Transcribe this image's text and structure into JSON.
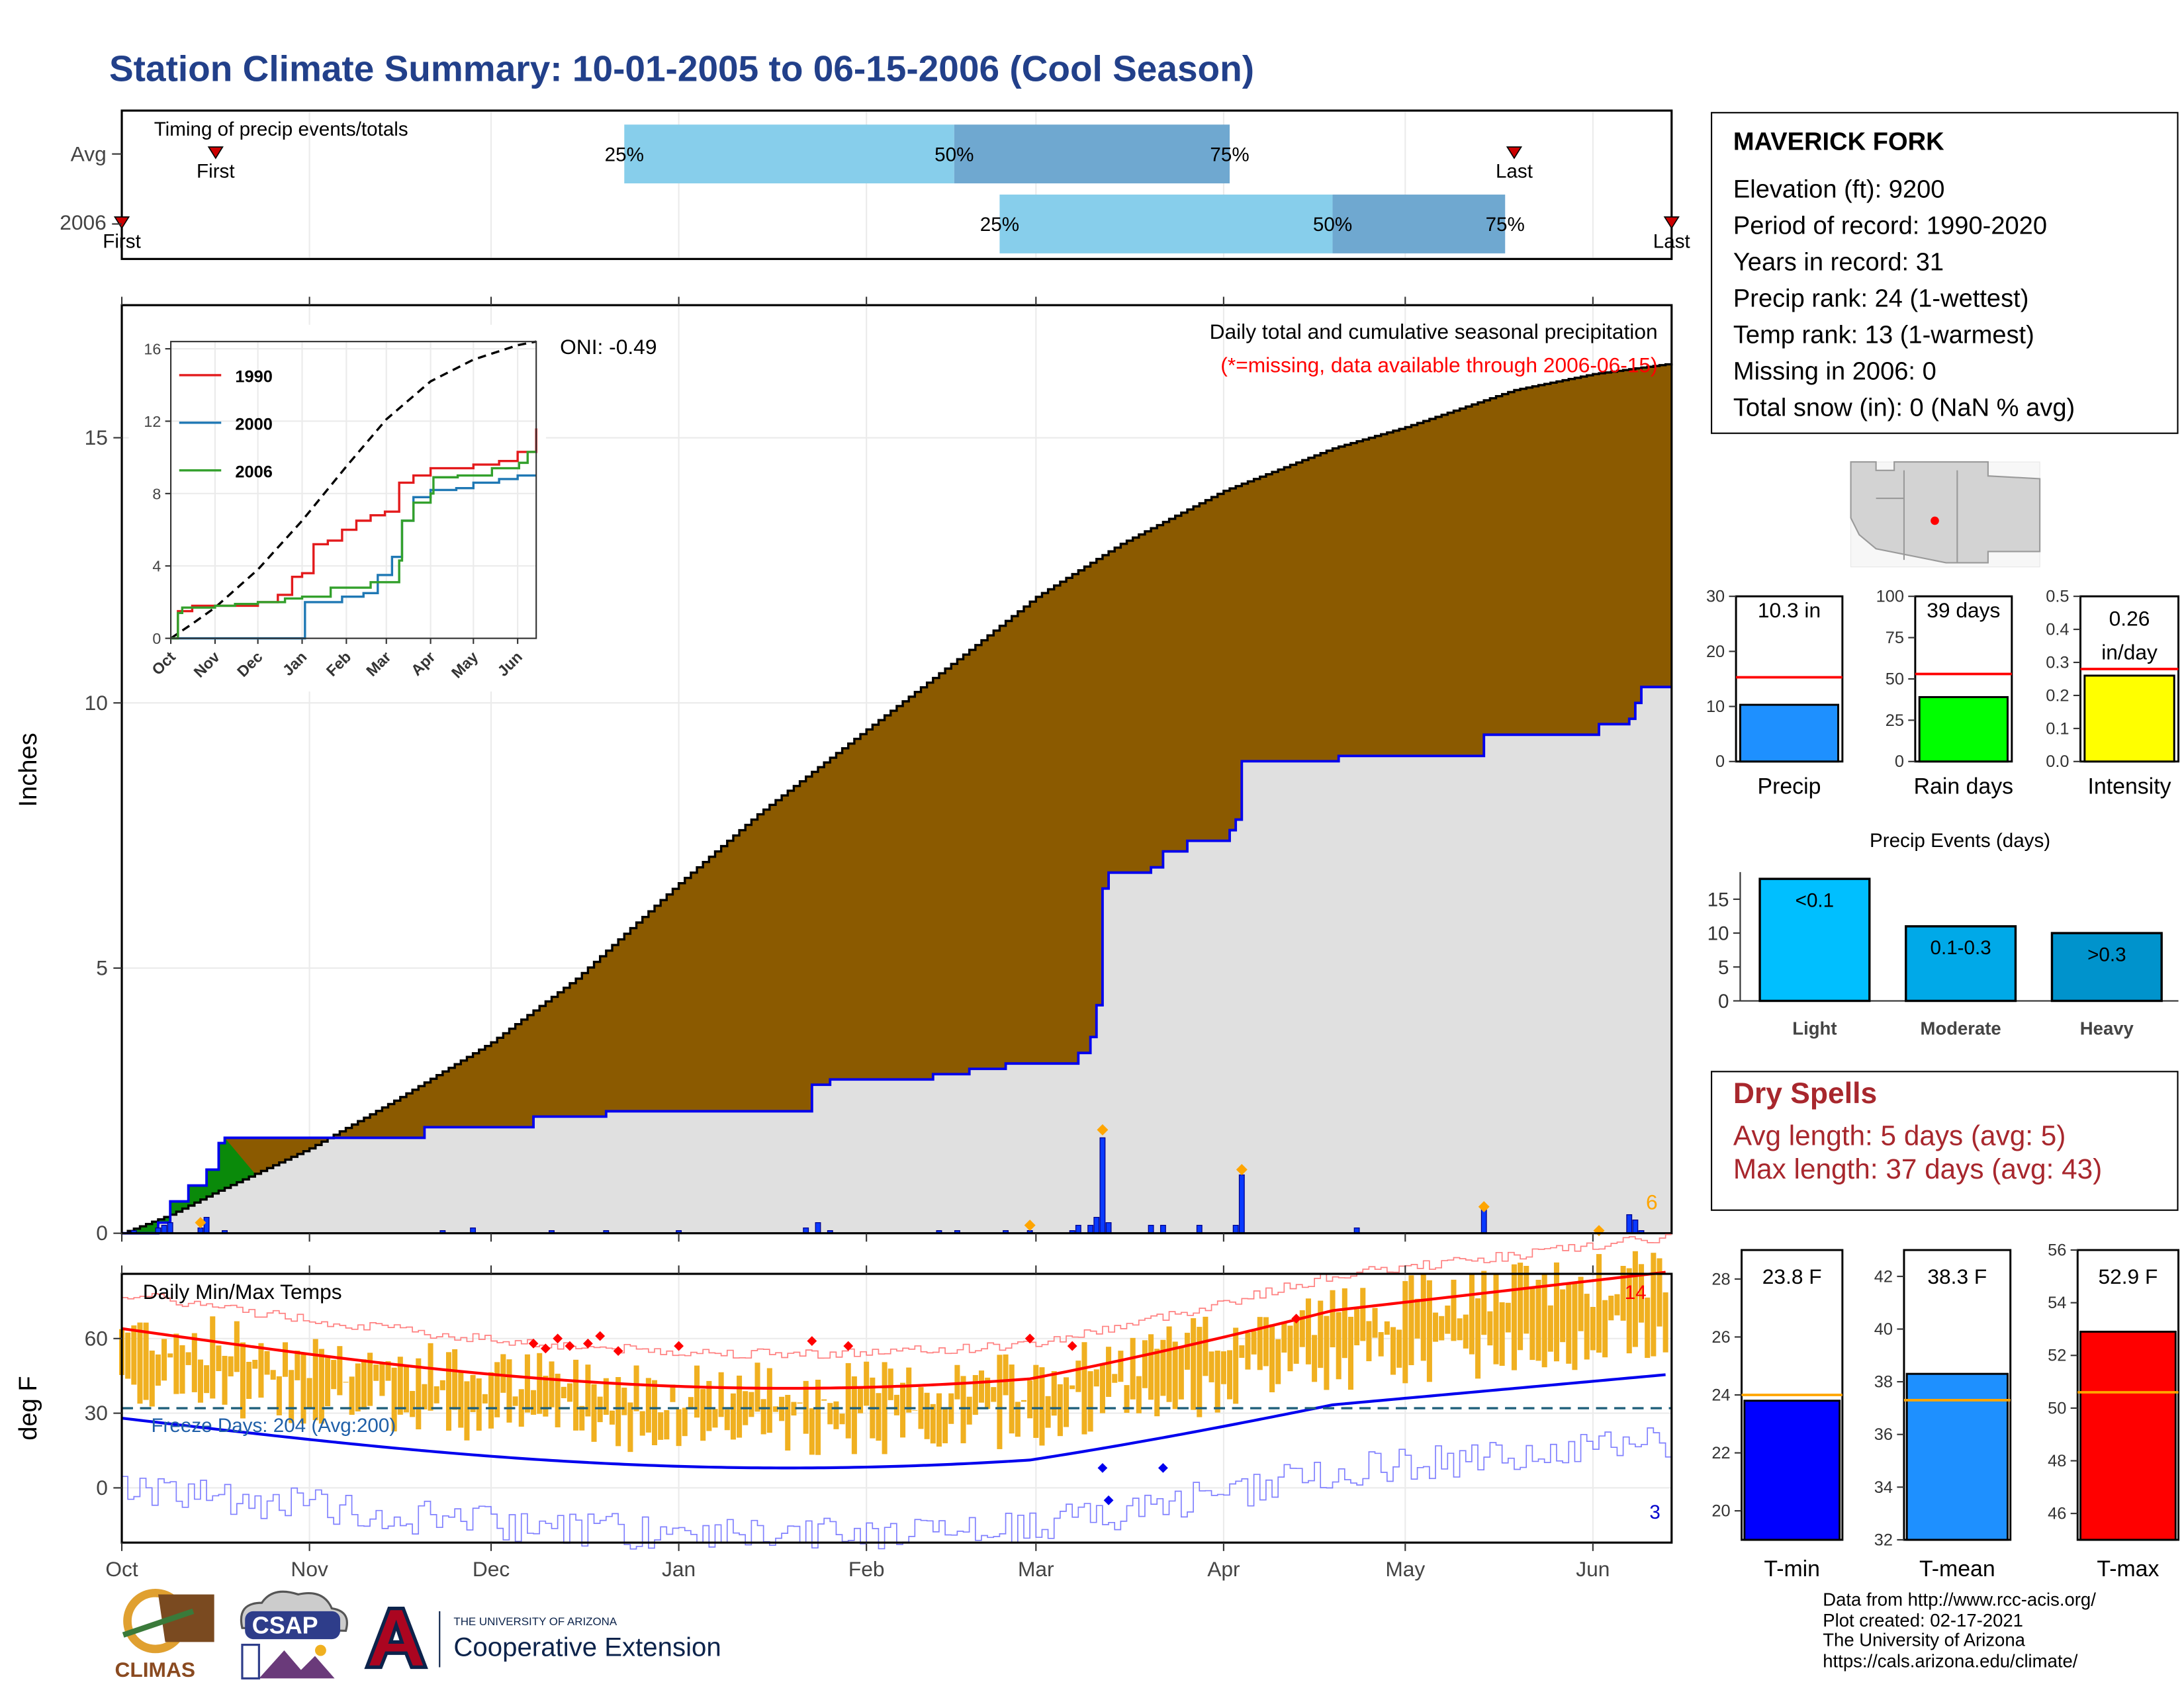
{
  "title": "Station Climate Summary: 10-01-2005 to 06-15-2006 (Cool Season)",
  "station": {
    "name": "MAVERICK FORK",
    "rows": [
      "Elevation (ft): 9200",
      "Period of record: 1990-2020",
      "Years in record: 31",
      "Precip rank: 24 (1-wettest)",
      "Temp rank: 13 (1-warmest)",
      "Missing in 2006: 0",
      "Total snow (in): 0 (NaN % avg)"
    ]
  },
  "timing": {
    "label": "Timing of precip events/totals",
    "rows": [
      {
        "name": "Avg",
        "first_label": "First",
        "last_label": "Last",
        "first": 15.5,
        "last": 230,
        "p25": 83,
        "p50": 137.5,
        "p75": 183
      },
      {
        "name": "2006",
        "first_label": "First",
        "last_label": "Last",
        "first": 0,
        "last": 256,
        "p25": 145,
        "p50": 200,
        "p75": 228.5
      }
    ],
    "pct_labels": [
      "25%",
      "50%",
      "75%"
    ]
  },
  "months": [
    "Oct",
    "Nov",
    "Dec",
    "Jan",
    "Feb",
    "Mar",
    "Apr",
    "May",
    "Jun"
  ],
  "month_days": [
    0,
    31,
    61,
    92,
    123,
    151,
    182,
    212,
    243
  ],
  "precip": {
    "ylabel": "Inches",
    "yticks": [
      0,
      5,
      10,
      15
    ],
    "ylim": [
      0,
      17.5
    ],
    "title": "Daily total and cumulative seasonal precipitation",
    "subtitle": "(*=missing, data available through 2006-06-15)",
    "oni": "ONI: -0.49",
    "extreme_count": "6",
    "avg_cumulative": [
      [
        0,
        0
      ],
      [
        8,
        0.35
      ],
      [
        15,
        0.75
      ],
      [
        31,
        1.6
      ],
      [
        45,
        2.5
      ],
      [
        61,
        3.6
      ],
      [
        75,
        4.8
      ],
      [
        92,
        6.6
      ],
      [
        105,
        7.9
      ],
      [
        123,
        9.5
      ],
      [
        140,
        11.0
      ],
      [
        151,
        12.0
      ],
      [
        165,
        13.0
      ],
      [
        182,
        14.0
      ],
      [
        200,
        14.8
      ],
      [
        212,
        15.2
      ],
      [
        230,
        15.9
      ],
      [
        243,
        16.2
      ],
      [
        256,
        16.4
      ]
    ],
    "cumulative_2006": [
      [
        0,
        0
      ],
      [
        6,
        0.2
      ],
      [
        8,
        0.6
      ],
      [
        11,
        0.9
      ],
      [
        14,
        1.2
      ],
      [
        16,
        1.7
      ],
      [
        17,
        1.8
      ],
      [
        31,
        1.8
      ],
      [
        45,
        1.8
      ],
      [
        50,
        2.0
      ],
      [
        61,
        2.0
      ],
      [
        68,
        2.2
      ],
      [
        80,
        2.3
      ],
      [
        112,
        2.3
      ],
      [
        114,
        2.8
      ],
      [
        117,
        2.9
      ],
      [
        134,
        3.0
      ],
      [
        140,
        3.1
      ],
      [
        146,
        3.2
      ],
      [
        158,
        3.4
      ],
      [
        160,
        3.7
      ],
      [
        161,
        4.3
      ],
      [
        162,
        6.5
      ],
      [
        163,
        6.8
      ],
      [
        170,
        6.9
      ],
      [
        172,
        7.2
      ],
      [
        176,
        7.4
      ],
      [
        183,
        7.6
      ],
      [
        184,
        7.8
      ],
      [
        185,
        8.9
      ],
      [
        201,
        9.0
      ],
      [
        204,
        9.0
      ],
      [
        220,
        9.0
      ],
      [
        225,
        9.4
      ],
      [
        244,
        9.6
      ],
      [
        249,
        9.7
      ],
      [
        250,
        10.0
      ],
      [
        251,
        10.3
      ],
      [
        256,
        10.3
      ]
    ],
    "daily_bars": [
      [
        2,
        0.05
      ],
      [
        6,
        0.1
      ],
      [
        7,
        0.15
      ],
      [
        8,
        0.2
      ],
      [
        13,
        0.1
      ],
      [
        14,
        0.3
      ],
      [
        17,
        0.05
      ],
      [
        53,
        0.05
      ],
      [
        58,
        0.1
      ],
      [
        71,
        0.05
      ],
      [
        80,
        0.05
      ],
      [
        92,
        0.05
      ],
      [
        113,
        0.1
      ],
      [
        115,
        0.2
      ],
      [
        117,
        0.05
      ],
      [
        135,
        0.05
      ],
      [
        138,
        0.05
      ],
      [
        146,
        0.05
      ],
      [
        150,
        0.05
      ],
      [
        157,
        0.05
      ],
      [
        158,
        0.15
      ],
      [
        160,
        0.15
      ],
      [
        161,
        0.3
      ],
      [
        162,
        1.8
      ],
      [
        163,
        0.2
      ],
      [
        170,
        0.15
      ],
      [
        172,
        0.15
      ],
      [
        178,
        0.15
      ],
      [
        184,
        0.15
      ],
      [
        185,
        1.1
      ],
      [
        204,
        0.1
      ],
      [
        225,
        0.45
      ],
      [
        249,
        0.35
      ],
      [
        250,
        0.25
      ],
      [
        251,
        0.05
      ]
    ],
    "extreme_markers": [
      [
        13,
        0.2
      ],
      [
        150,
        0.15
      ],
      [
        162,
        1.95
      ],
      [
        185,
        1.2
      ],
      [
        225,
        0.5
      ],
      [
        244,
        0.05
      ]
    ]
  },
  "inset": {
    "yticks": [
      0,
      4,
      8,
      12,
      16
    ],
    "months": [
      "Oct",
      "Nov",
      "Dec",
      "Jan",
      "Feb",
      "Mar",
      "Apr",
      "May",
      "Jun"
    ],
    "series": [
      {
        "name": "1990",
        "color": "#e31a1c",
        "points": [
          [
            0,
            0
          ],
          [
            5,
            1.5
          ],
          [
            15,
            1.8
          ],
          [
            31,
            1.8
          ],
          [
            61,
            2.0
          ],
          [
            75,
            2.4
          ],
          [
            85,
            3.4
          ],
          [
            92,
            3.6
          ],
          [
            100,
            5.2
          ],
          [
            110,
            5.4
          ],
          [
            120,
            6.0
          ],
          [
            130,
            6.5
          ],
          [
            140,
            6.8
          ],
          [
            150,
            7.0
          ],
          [
            160,
            8.6
          ],
          [
            170,
            9.0
          ],
          [
            182,
            9.4
          ],
          [
            200,
            9.4
          ],
          [
            212,
            9.6
          ],
          [
            230,
            9.8
          ],
          [
            243,
            10.3
          ],
          [
            256,
            11.6
          ]
        ]
      },
      {
        "name": "2000",
        "color": "#1f78b4",
        "points": [
          [
            0,
            0
          ],
          [
            92,
            0
          ],
          [
            94,
            2.0
          ],
          [
            120,
            2.3
          ],
          [
            135,
            2.5
          ],
          [
            145,
            3.5
          ],
          [
            155,
            4.5
          ],
          [
            162,
            6.5
          ],
          [
            170,
            7.8
          ],
          [
            182,
            8.2
          ],
          [
            200,
            8.3
          ],
          [
            212,
            8.6
          ],
          [
            230,
            8.8
          ],
          [
            243,
            9.0
          ],
          [
            256,
            9.0
          ]
        ]
      },
      {
        "name": "2006",
        "color": "#33a02c",
        "points": [
          [
            0,
            0
          ],
          [
            5,
            1.4
          ],
          [
            8,
            1.7
          ],
          [
            31,
            1.8
          ],
          [
            45,
            1.9
          ],
          [
            61,
            2.0
          ],
          [
            80,
            2.2
          ],
          [
            92,
            2.3
          ],
          [
            112,
            2.8
          ],
          [
            140,
            3.1
          ],
          [
            160,
            4.3
          ],
          [
            162,
            6.5
          ],
          [
            170,
            7.5
          ],
          [
            182,
            8.0
          ],
          [
            184,
            8.9
          ],
          [
            201,
            9.0
          ],
          [
            220,
            9.0
          ],
          [
            225,
            9.4
          ],
          [
            244,
            9.7
          ],
          [
            250,
            10.3
          ],
          [
            256,
            10.3
          ]
        ]
      }
    ],
    "avg_dashed": [
      [
        0,
        0
      ],
      [
        15,
        0.8
      ],
      [
        31,
        1.7
      ],
      [
        61,
        3.8
      ],
      [
        92,
        6.5
      ],
      [
        123,
        9.5
      ],
      [
        151,
        12.1
      ],
      [
        182,
        14.2
      ],
      [
        212,
        15.4
      ],
      [
        243,
        16.2
      ],
      [
        256,
        16.4
      ]
    ]
  },
  "mini_bars": [
    {
      "label": "Precip",
      "value_label": "10.3 in",
      "value": 10.3,
      "avg": 15.3,
      "ymax": 30,
      "yticks": [
        0,
        10,
        20,
        30
      ],
      "color": "#1e90ff"
    },
    {
      "label": "Rain days",
      "value_label": "39 days",
      "value": 39,
      "avg": 53,
      "ymax": 100,
      "yticks": [
        0,
        25,
        50,
        75,
        100
      ],
      "color": "#00ff00"
    },
    {
      "label": "Intensity",
      "value_label_1": "0.26",
      "value_label_2": "in/day",
      "value": 0.26,
      "avg": 0.28,
      "ymax": 0.5,
      "yticks": [
        0.0,
        0.1,
        0.2,
        0.3,
        0.4,
        0.5
      ],
      "color": "#ffff00"
    }
  ],
  "events": {
    "title": "Precip Events (days)",
    "categories": [
      "Light",
      "Moderate",
      "Heavy"
    ],
    "bar_labels": [
      "<0.1",
      "0.1-0.3",
      ">0.3"
    ],
    "values": [
      18,
      11,
      10
    ],
    "colors": [
      "#00bfff",
      "#00a9e8",
      "#0093cc"
    ],
    "yticks": [
      0,
      5,
      10,
      15
    ]
  },
  "dry": {
    "title": "Dry Spells",
    "avg_length": "Avg length: 5 days (avg: 5)",
    "max_length": "Max length: 37 days (avg: 43)"
  },
  "temps": {
    "ylabel": "deg F",
    "title": "Daily Min/Max Temps",
    "yticks": [
      0,
      30,
      60
    ],
    "freeze_label": "Freeze Days: 204 (Avg:200)",
    "hot_count": "14",
    "cold_count": "3",
    "freeze_line": 32
  },
  "temp_bars": [
    {
      "label": "T-min",
      "value_label": "23.8 F",
      "value": 23.8,
      "avg": 24.0,
      "ymin": 19,
      "ymax": 29,
      "yticks": [
        20,
        22,
        24,
        26,
        28
      ],
      "color": "#0000ff"
    },
    {
      "label": "T-mean",
      "value_label": "38.3 F",
      "value": 38.3,
      "avg": 37.3,
      "ymin": 32,
      "ymax": 43,
      "yticks": [
        32,
        34,
        36,
        38,
        40,
        42
      ],
      "color": "#1e90ff"
    },
    {
      "label": "T-max",
      "value_label": "52.9 F",
      "value": 52.9,
      "avg": 50.6,
      "ymin": 45,
      "ymax": 56,
      "yticks": [
        46,
        48,
        50,
        52,
        54,
        56
      ],
      "color": "#ff0000"
    }
  ],
  "credits": {
    "line1": "Data from http://www.rcc-acis.org/",
    "line2": "Plot created: 02-17-2021",
    "line3": "The University of Arizona",
    "line4": "https://cals.arizona.edu/climate/"
  },
  "logos": {
    "climas": "CLIMAS",
    "csap": "CSAP",
    "ua_small": "THE UNIVERSITY OF ARIZONA",
    "ua_big": "Cooperative Extension"
  }
}
